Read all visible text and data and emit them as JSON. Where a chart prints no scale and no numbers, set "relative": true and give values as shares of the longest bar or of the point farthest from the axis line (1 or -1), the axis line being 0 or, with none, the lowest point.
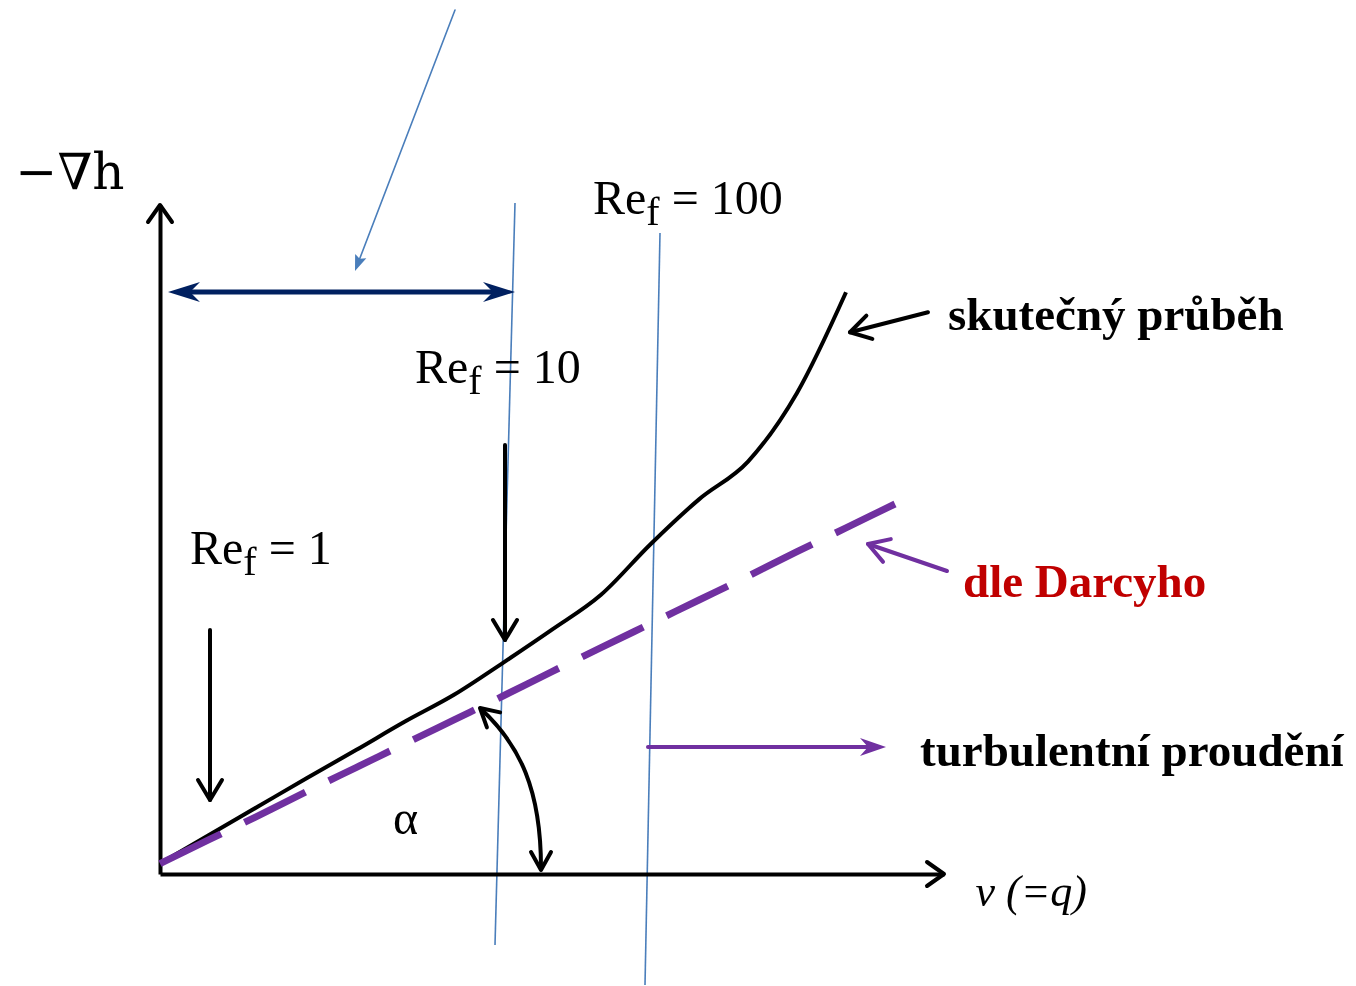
{
  "chart_data": {
    "type": "line",
    "relative": true,
    "legend": "right",
    "categories": [
      null,
      null,
      null,
      null,
      null,
      null,
      null,
      null,
      null,
      null,
      null,
      null,
      null,
      null,
      null,
      null,
      null
    ],
    "xlabel": "v (=q)",
    "ylabel": "−∇h",
    "series": [
      {
        "name": "skutečný průběh",
        "color": "#000000",
        "line_style": "solid",
        "values": [
          0.018,
          0.067,
          0.116,
          0.165,
          0.213,
          0.262,
          0.308,
          0.363,
          0.42,
          0.48,
          0.566,
          0.644,
          0.709,
          0.827,
          1,
          null,
          null
        ]
      },
      {
        "name": "dle Darcyho",
        "color": "#7030a0",
        "line_style": "dashed",
        "values": [
          0.018,
          0.059,
          0.1,
          0.142,
          0.183,
          0.224,
          0.265,
          0.306,
          0.348,
          0.389,
          0.43,
          0.471,
          0.512,
          0.554,
          0.595,
          0.636,
          null
        ]
      }
    ],
    "annotations": [
      "Re$_{f}$ = 1",
      "Re$_{f}$ = 10",
      "Re$_{f}$ = 100",
      "α",
      "turbulentní proudění"
    ]
  }
}
